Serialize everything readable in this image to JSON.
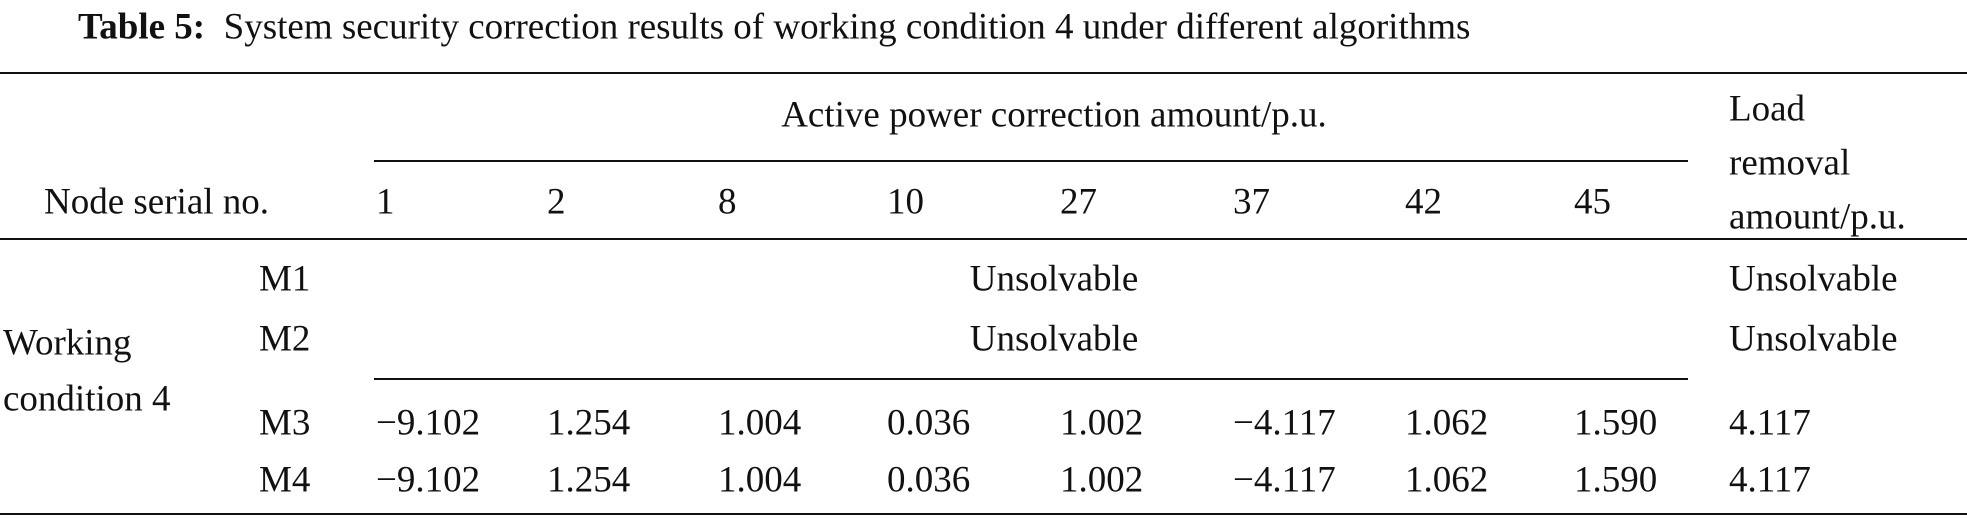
{
  "title": {
    "label": "Table 5:",
    "text": "System security correction results of working condition 4 under different algorithms"
  },
  "header": {
    "node": "Node serial no.",
    "group": "Active power correction amount/p.u.",
    "nodes": [
      "1",
      "2",
      "8",
      "10",
      "27",
      "37",
      "42",
      "45"
    ],
    "load": [
      "Load",
      "removal",
      "amount/p.u."
    ]
  },
  "table": {
    "condition": [
      "Working",
      "condition 4"
    ],
    "rows": [
      {
        "method": "M1",
        "active": "Unsolvable",
        "load": "Unsolvable"
      },
      {
        "method": "M2",
        "active": "Unsolvable",
        "load": "Unsolvable"
      },
      {
        "method": "M3",
        "values": [
          "−9.102",
          "1.254",
          "1.004",
          "0.036",
          "1.002",
          "−4.117",
          "1.062",
          "1.590"
        ],
        "load": "4.117"
      },
      {
        "method": "M4",
        "values": [
          "−9.102",
          "1.254",
          "1.004",
          "0.036",
          "1.002",
          "−4.117",
          "1.062",
          "1.590"
        ],
        "load": "4.117"
      }
    ]
  }
}
